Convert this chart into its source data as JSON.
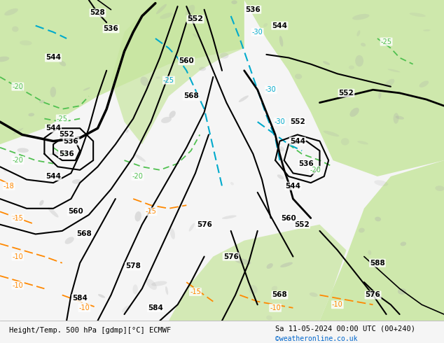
{
  "title_left": "Height/Temp. 500 hPa [gdmp][°C] ECMWF",
  "title_right": "Sa 11-05-2024 00:00 UTC (00+240)",
  "watermark": "©weatheronline.co.uk",
  "fig_width": 6.34,
  "fig_height": 4.9,
  "dpi": 100,
  "bg_color": "#e8e8e8",
  "map_bg_light": "#f0f0f0",
  "green_color": "#c8e6a0",
  "line_color_black": "#000000",
  "line_color_green": "#50c050",
  "line_color_cyan": "#00aacc",
  "line_color_orange": "#ff8800",
  "label_color_black": "#000000",
  "label_color_green": "#40a030",
  "label_color_cyan": "#0088aa",
  "label_color_orange": "#cc6600",
  "bottom_bar_color": "#f5f5f5",
  "bottom_bar_height": 0.065
}
